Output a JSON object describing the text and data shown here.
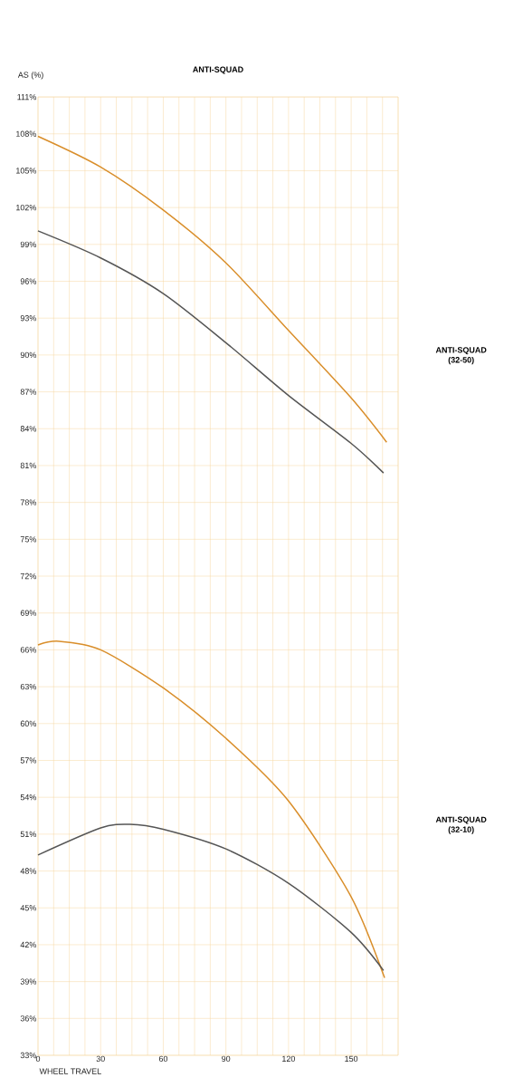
{
  "chart_data": {
    "type": "line",
    "title": "ANTI-SQUAD",
    "xlabel": "WHEEL TRAVEL",
    "ylabel": "AS (%)",
    "xlim": [
      0,
      172.5
    ],
    "xticks": [
      0,
      {
        "value": 7.5,
        "label": null
      },
      {
        "value": 15,
        "label": null
      },
      {
        "value": 22.5,
        "label": null
      },
      30,
      {
        "value": 37.5,
        "label": null
      },
      {
        "value": 45,
        "label": null
      },
      {
        "value": 52.5,
        "label": null
      },
      60,
      {
        "value": 67.5,
        "label": null
      },
      {
        "value": 75,
        "label": null
      },
      {
        "value": 82.5,
        "label": null
      },
      90,
      {
        "value": 97.5,
        "label": null
      },
      {
        "value": 105,
        "label": null
      },
      {
        "value": 112.5,
        "label": null
      },
      120,
      {
        "value": 127.5,
        "label": null
      },
      {
        "value": 135,
        "label": null
      },
      {
        "value": 142.5,
        "label": null
      },
      150,
      {
        "value": 157.5,
        "label": null
      },
      {
        "value": 165,
        "label": null
      },
      {
        "value": 172.5,
        "label": null
      }
    ],
    "ylim": [
      33,
      111
    ],
    "yticks": [
      {
        "value": 33,
        "label": "33%"
      },
      {
        "value": 36,
        "label": "36%"
      },
      {
        "value": 39,
        "label": "39%"
      },
      {
        "value": 42,
        "label": "42%"
      },
      {
        "value": 45,
        "label": "45%"
      },
      {
        "value": 48,
        "label": "48%"
      },
      {
        "value": 51,
        "label": "51%"
      },
      {
        "value": 54,
        "label": "54%"
      },
      {
        "value": 57,
        "label": "57%"
      },
      {
        "value": 60,
        "label": "60%"
      },
      {
        "value": 63,
        "label": "63%"
      },
      {
        "value": 66,
        "label": "66%"
      },
      {
        "value": 69,
        "label": "69%"
      },
      {
        "value": 72,
        "label": "72%"
      },
      {
        "value": 75,
        "label": "75%"
      },
      {
        "value": 78,
        "label": "78%"
      },
      {
        "value": 81,
        "label": "81%"
      },
      {
        "value": 84,
        "label": "84%"
      },
      {
        "value": 87,
        "label": "87%"
      },
      {
        "value": 90,
        "label": "90%"
      },
      {
        "value": 93,
        "label": "93%"
      },
      {
        "value": 96,
        "label": "96%"
      },
      {
        "value": 99,
        "label": "99%"
      },
      {
        "value": 102,
        "label": "102%"
      },
      {
        "value": 105,
        "label": "105%"
      },
      {
        "value": 108,
        "label": "108%"
      },
      {
        "value": 111,
        "label": "111%"
      }
    ],
    "grid": true,
    "marker": "none",
    "line_style": "solid",
    "annotations": [
      "ANTI-SQUAD (32-50)",
      "ANTI-SQUAD (32-10)"
    ],
    "series": [
      {
        "color": "#d98e2a",
        "x": [
          0,
          30,
          60,
          90,
          120,
          150,
          167
        ],
        "values": [
          107.8,
          105.3,
          101.8,
          97.5,
          92.0,
          86.5,
          82.9
        ]
      },
      {
        "color": "#555555",
        "x": [
          0,
          30,
          60,
          90,
          120,
          150,
          165.5
        ],
        "values": [
          100.1,
          97.9,
          95.0,
          91.0,
          86.7,
          82.8,
          80.4
        ]
      },
      {
        "color": "#d98e2a",
        "x": [
          0,
          10,
          30,
          60,
          90,
          120,
          150,
          166
        ],
        "values": [
          66.4,
          66.7,
          66.0,
          62.9,
          58.8,
          53.7,
          45.9,
          39.3
        ]
      },
      {
        "color": "#555555",
        "x": [
          0,
          30,
          44,
          60,
          90,
          120,
          150,
          165.5
        ],
        "values": [
          49.3,
          51.5,
          51.8,
          51.4,
          49.8,
          47.0,
          43.0,
          39.9
        ]
      }
    ]
  }
}
